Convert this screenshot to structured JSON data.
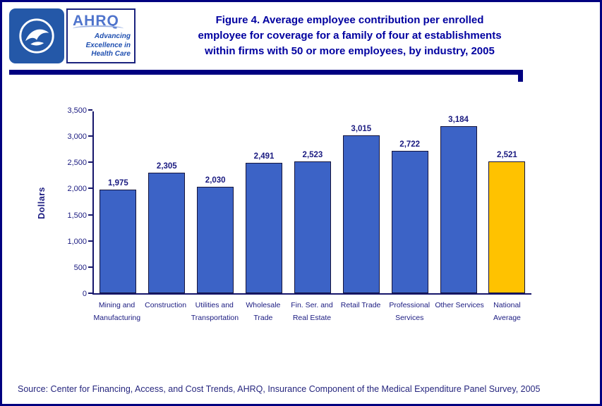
{
  "page": {
    "border_color": "#000080",
    "background": "#ffffff"
  },
  "header": {
    "title_lines": [
      "Figure 4. Average employee contribution per enrolled",
      "employee for coverage for a family of four at establishments",
      "within firms with 50 or more employees, by industry, 2005"
    ],
    "title_color": "#0000A0",
    "ahrq_logo": {
      "acronym": "AHRQ",
      "tagline_lines": [
        "Advancing",
        "Excellence in",
        "Health Care"
      ]
    }
  },
  "chart_data": {
    "type": "bar",
    "title": "Figure 4. Average employee contribution per enrolled employee for coverage for a family of four at establishments within firms with 50 or more employees, by industry, 2005",
    "ylabel": "Dollars",
    "xlabel": "",
    "ylim": [
      0,
      3500
    ],
    "grid": false,
    "legend": false,
    "ytick_values": [
      0,
      500,
      1000,
      1500,
      2000,
      2500,
      3000,
      3500
    ],
    "ytick_labels": [
      "0",
      "500",
      "1,000",
      "1,500",
      "2,000",
      "2,500",
      "3,000",
      "3,500"
    ],
    "categories": [
      [
        "Mining and",
        "Manufacturing"
      ],
      [
        "Construction"
      ],
      [
        "Utilities and",
        "Transportation"
      ],
      [
        "Wholesale",
        "Trade"
      ],
      [
        "Fin. Ser. and",
        "Real Estate"
      ],
      [
        "Retail Trade"
      ],
      [
        "Professional",
        "Services"
      ],
      [
        "Other Services"
      ],
      [
        "National",
        "Average"
      ]
    ],
    "values": [
      1975,
      2305,
      2030,
      2491,
      2523,
      3015,
      2722,
      3184,
      2521
    ],
    "value_labels": [
      "1,975",
      "2,305",
      "2,030",
      "2,491",
      "2,523",
      "3,015",
      "2,722",
      "3,184",
      "2,521"
    ],
    "bar_color": "#3C63C6",
    "highlight_color": "#FFC200",
    "highlight_index": 8
  },
  "source": "Source: Center for Financing, Access, and Cost Trends, AHRQ, Insurance Component of the Medical Expenditure Panel Survey, 2005"
}
